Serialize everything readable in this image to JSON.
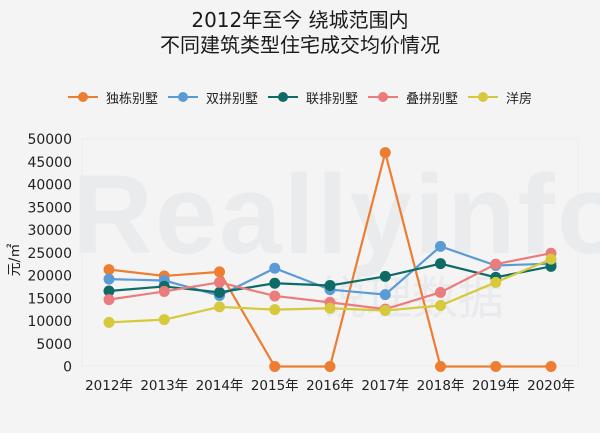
{
  "title": {
    "line1": "2012年至今 绕城范围内",
    "line2": "不同建筑类型住宅成交均价情况"
  },
  "watermark": {
    "text": "Reallyinfo",
    "subtext": "锐理数据"
  },
  "legend": [
    {
      "name": "独栋别墅",
      "color": "#ED7D31"
    },
    {
      "name": "双拼别墅",
      "color": "#5B9BD5"
    },
    {
      "name": "联排别墅",
      "color": "#0F6B66"
    },
    {
      "name": "叠拼别墅",
      "color": "#EB7C7C"
    },
    {
      "name": "洋房",
      "color": "#D6C93C"
    }
  ],
  "yaxis": {
    "label": "元/㎡",
    "ticks": [
      "0",
      "5000",
      "10000",
      "15000",
      "20000",
      "25000",
      "30000",
      "35000",
      "40000",
      "45000",
      "50000"
    ]
  },
  "chart_data": {
    "type": "line",
    "title": "2012年至今 绕城范围内 不同建筑类型住宅成交均价情况",
    "xlabel": "",
    "ylabel": "元/㎡",
    "ylim": [
      0,
      50000
    ],
    "grid": false,
    "legend_position": "top",
    "categories": [
      "2012年",
      "2013年",
      "2014年",
      "2015年",
      "2016年",
      "2017年",
      "2018年",
      "2019年",
      "2020年"
    ],
    "series": [
      {
        "name": "独栋别墅",
        "color": "#ED7D31",
        "values": [
          21300,
          19900,
          20800,
          0,
          0,
          47000,
          0,
          0,
          0
        ]
      },
      {
        "name": "双拼别墅",
        "color": "#5B9BD5",
        "values": [
          19200,
          18900,
          15600,
          21600,
          16900,
          15800,
          26400,
          22200,
          22600
        ]
      },
      {
        "name": "联排别墅",
        "color": "#0F6B66",
        "values": [
          16600,
          17600,
          16300,
          18300,
          17800,
          19800,
          22600,
          19600,
          22000
        ]
      },
      {
        "name": "叠拼别墅",
        "color": "#EB7C7C",
        "values": [
          14700,
          16500,
          18500,
          15500,
          14100,
          12600,
          16300,
          22500,
          24900
        ]
      },
      {
        "name": "洋房",
        "color": "#D6C93C",
        "values": [
          9700,
          10300,
          13100,
          12500,
          12800,
          12300,
          13400,
          18500,
          23600
        ]
      }
    ]
  }
}
